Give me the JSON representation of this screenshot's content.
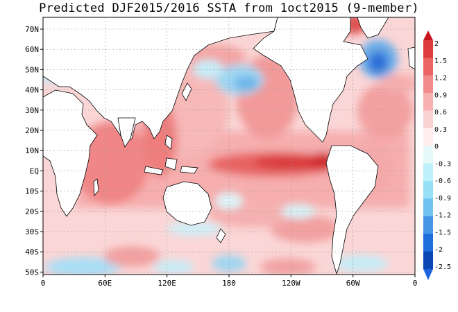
{
  "title": "Predicted DJF2015/2016 SSTA from 1oct2015 (9-member)",
  "lat_labels": [
    "70N",
    "60N",
    "50N",
    "40N",
    "30N",
    "20N",
    "10N",
    "EQ",
    "10S",
    "20S",
    "30S",
    "40S",
    "50S"
  ],
  "lon_labels": [
    "0",
    "60E",
    "120E",
    "180",
    "120W",
    "60W",
    "0"
  ],
  "colorbar": {
    "labels": [
      "2",
      "1.5",
      "1.2",
      "0.9",
      "0.6",
      "0.3",
      "0",
      "-0.3",
      "-0.6",
      "-0.9",
      "-1.2",
      "-1.5",
      "-2",
      "-2.5"
    ],
    "colors": [
      "#c8141e",
      "#dc3c3c",
      "#ec6464",
      "#f28c8c",
      "#f7b1b1",
      "#fbd2d2",
      "#ffeeee",
      "#e6fafa",
      "#bdf0fa",
      "#96e1f5",
      "#6ec3f0",
      "#4696e6",
      "#1e6edc",
      "#0a46b4",
      "#1e64dc"
    ]
  }
}
